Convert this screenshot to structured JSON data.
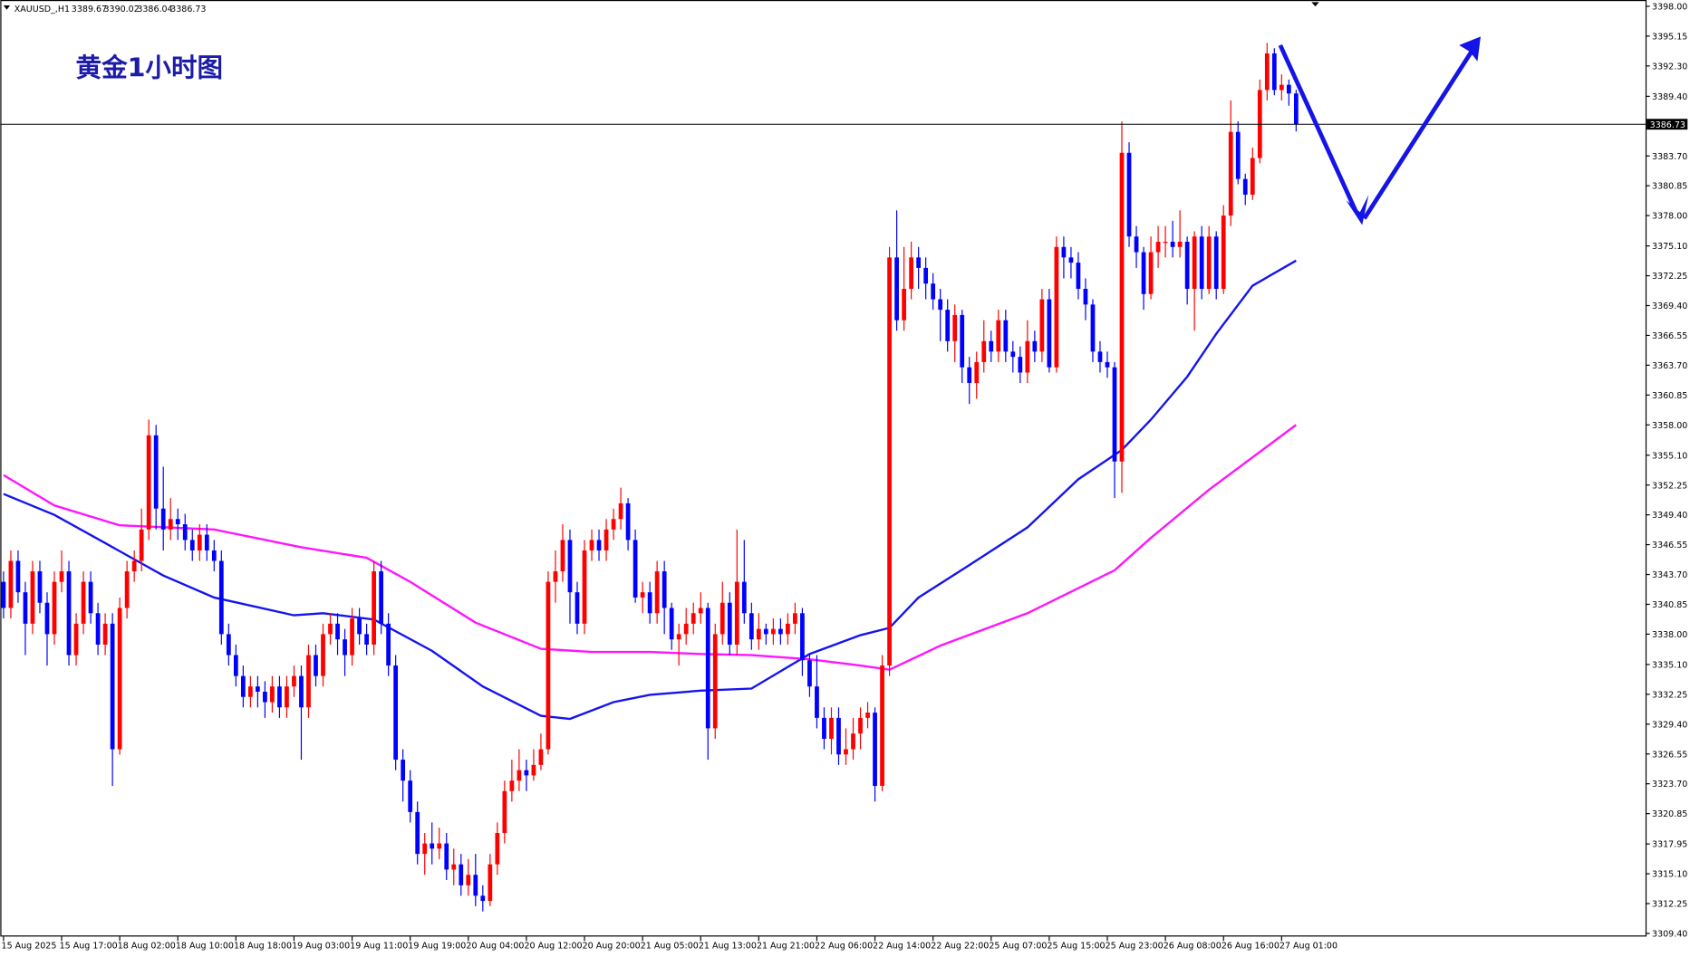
{
  "chart_data": {
    "type": "candlestick",
    "title": "黄金1小时图",
    "symbol": "XAUUSD_,H1",
    "up_color": "#ff0000",
    "down_color": "#0000ff",
    "grid": false,
    "ylim": [
      3309.1,
      3398.5
    ],
    "yticks": [
      {
        "value": 3398,
        "label": "3398.00"
      },
      3395.15,
      {
        "value": 3392.3,
        "label": "3392.30"
      },
      {
        "value": 3389.4,
        "label": "3389.40"
      },
      {
        "value": 3383.7,
        "label": "3383.70"
      },
      3380.85,
      {
        "value": 3378,
        "label": "3378.00"
      },
      {
        "value": 3375.1,
        "label": "3375.10"
      },
      3372.25,
      {
        "value": 3369.4,
        "label": "3369.40"
      },
      3366.55,
      {
        "value": 3363.7,
        "label": "3363.70"
      },
      3360.85,
      {
        "value": 3358,
        "label": "3358.00"
      },
      {
        "value": 3355.1,
        "label": "3355.10"
      },
      3352.25,
      {
        "value": 3349.4,
        "label": "3349.40"
      },
      3346.55,
      {
        "value": 3343.7,
        "label": "3343.70"
      },
      3340.85,
      {
        "value": 3338,
        "label": "3338.00"
      },
      {
        "value": 3335.1,
        "label": "3335.10"
      },
      3332.25,
      {
        "value": 3329.4,
        "label": "3329.40"
      },
      3326.55,
      {
        "value": 3323.7,
        "label": "3323.70"
      },
      3320.85,
      3317.95,
      {
        "value": 3315.1,
        "label": "3315.10"
      },
      3312.25,
      {
        "value": 3309.4,
        "label": "3309.40"
      }
    ],
    "categories": [
      "15 Aug 2025",
      null,
      null,
      null,
      null,
      null,
      null,
      null,
      "15 Aug 17:00",
      null,
      null,
      null,
      null,
      null,
      null,
      null,
      "18 Aug 02:00",
      null,
      null,
      null,
      null,
      null,
      null,
      null,
      "18 Aug 10:00",
      null,
      null,
      null,
      null,
      null,
      null,
      null,
      "18 Aug 18:00",
      null,
      null,
      null,
      null,
      null,
      null,
      null,
      "19 Aug 03:00",
      null,
      null,
      null,
      null,
      null,
      null,
      null,
      "19 Aug 11:00",
      null,
      null,
      null,
      null,
      null,
      null,
      null,
      "19 Aug 19:00",
      null,
      null,
      null,
      null,
      null,
      null,
      null,
      "20 Aug 04:00",
      null,
      null,
      null,
      null,
      null,
      null,
      null,
      "20 Aug 12:00",
      null,
      null,
      null,
      null,
      null,
      null,
      null,
      "20 Aug 20:00",
      null,
      null,
      null,
      null,
      null,
      null,
      null,
      "21 Aug 05:00",
      null,
      null,
      null,
      null,
      null,
      null,
      null,
      "21 Aug 13:00",
      null,
      null,
      null,
      null,
      null,
      null,
      null,
      "21 Aug 21:00",
      null,
      null,
      null,
      null,
      null,
      null,
      null,
      "22 Aug 06:00",
      null,
      null,
      null,
      null,
      null,
      null,
      null,
      "22 Aug 14:00",
      null,
      null,
      null,
      null,
      null,
      null,
      null,
      "22 Aug 22:00",
      null,
      null,
      null,
      null,
      null,
      null,
      null,
      "25 Aug 07:00",
      null,
      null,
      null,
      null,
      null,
      null,
      null,
      "25 Aug 15:00",
      null,
      null,
      null,
      null,
      null,
      null,
      null,
      "25 Aug 23:00",
      null,
      null,
      null,
      null,
      null,
      null,
      null,
      "26 Aug 08:00",
      null,
      null,
      null,
      null,
      null,
      null,
      null,
      "26 Aug 16:00",
      null,
      null,
      null,
      null,
      null,
      null,
      null,
      "27 Aug 01:00",
      null,
      null
    ],
    "open": [
      3343,
      3340.5,
      3345,
      3342,
      3339,
      3344,
      3341,
      3338,
      3343,
      3344,
      3336,
      3339,
      3343,
      3340,
      3337,
      3339,
      3327,
      3340.5,
      3344,
      3345,
      3348,
      3357,
      3350,
      3348,
      3349,
      3348.5,
      3347,
      3346,
      3347.5,
      3346,
      3345,
      3338,
      3336,
      3334,
      3332,
      3333,
      3332.5,
      3331.5,
      3333,
      3331,
      3333,
      3334,
      3331,
      3336,
      3334,
      3338,
      3339,
      3337.5,
      3336,
      3339.5,
      3338,
      3337,
      3344,
      3339,
      3335,
      3326,
      3324,
      3321,
      3317,
      3318,
      3317.5,
      3318,
      3315.5,
      3316,
      3314,
      3315,
      3313,
      3312.5,
      3316,
      3319,
      3323,
      3324,
      3325,
      3324.5,
      3325.5,
      3327,
      3343,
      3344,
      3347,
      3342,
      3339,
      3346,
      3347,
      3346,
      3348,
      3349,
      3350.5,
      3347,
      3341.5,
      3342,
      3340,
      3344,
      3340.5,
      3337.5,
      3338,
      3339,
      3340,
      3340.5,
      3329,
      3338,
      3341,
      3337,
      3343,
      3340,
      3337.5,
      3338.5,
      3338,
      3338.5,
      3338,
      3339,
      3340,
      3335.5,
      3333,
      3330,
      3328,
      3330,
      3326.5,
      3327,
      3328.5,
      3330,
      3330.5,
      3323.5,
      3335,
      3374,
      3368,
      3371,
      3374,
      3373,
      3371.5,
      3370,
      3369,
      3366,
      3368.5,
      3363.5,
      3362,
      3364,
      3366,
      3365,
      3368,
      3365,
      3364.5,
      3363,
      3366,
      3365,
      3370,
      3363.5,
      3375,
      3374,
      3373.5,
      3371,
      3369.5,
      3365,
      3364,
      3363.5,
      3354.5,
      3384,
      3376,
      3374.5,
      3370.5,
      3374.5,
      3375.5,
      3375.5,
      3375,
      3375.5,
      3371,
      3376,
      3371,
      3376,
      3371,
      3378,
      3386,
      3381.5,
      3380,
      3383.5,
      3390,
      3393.5,
      3390,
      3390.5,
      3389.67
    ],
    "high": [
      3344,
      3346,
      3346,
      3343,
      3345,
      3345,
      3342,
      3344,
      3346,
      3345,
      3340,
      3344,
      3344,
      3341,
      3340,
      3340,
      3341.5,
      3345,
      3346,
      3350,
      3358.5,
      3358,
      3354,
      3351,
      3350,
      3349.5,
      3348,
      3348.5,
      3348.5,
      3347,
      3346,
      3339,
      3337,
      3335,
      3334,
      3334,
      3333.5,
      3334,
      3334,
      3334,
      3335,
      3335,
      3337,
      3337,
      3339,
      3340,
      3340,
      3338.5,
      3340.5,
      3340.5,
      3339,
      3345,
      3345,
      3340,
      3336,
      3327,
      3325,
      3322,
      3319,
      3320,
      3319.5,
      3319,
      3317.5,
      3317,
      3316.5,
      3317,
      3314,
      3317,
      3320,
      3324,
      3326,
      3327,
      3326,
      3327,
      3328.5,
      3344,
      3346,
      3348.5,
      3348,
      3343,
      3347,
      3348,
      3348,
      3349,
      3350,
      3352,
      3351,
      3348,
      3343,
      3343,
      3345,
      3345,
      3341,
      3339,
      3340.5,
      3341,
      3342,
      3341,
      3339,
      3343,
      3342,
      3348,
      3347,
      3341,
      3340,
      3339,
      3339.5,
      3339.5,
      3340,
      3341,
      3340.5,
      3336,
      3336,
      3331,
      3331,
      3331,
      3329,
      3330,
      3331,
      3331.5,
      3331,
      3336,
      3375,
      3378.5,
      3375,
      3375.5,
      3375,
      3374,
      3372.5,
      3371,
      3370,
      3369.5,
      3369,
      3364.5,
      3365,
      3368,
      3367,
      3369,
      3369,
      3366,
      3365.5,
      3368,
      3367,
      3371,
      3371,
      3376,
      3376,
      3375,
      3374.5,
      3372,
      3370,
      3366,
      3365,
      3364,
      3387,
      3385,
      3377,
      3375,
      3376,
      3377,
      3377,
      3377.5,
      3378.5,
      3376,
      3376.5,
      3377,
      3377,
      3376.5,
      3379,
      3389,
      3387,
      3382,
      3384.5,
      3391,
      3394.5,
      3394,
      3391.5,
      3391,
      3390.02
    ],
    "low": [
      3339.5,
      3339.5,
      3341,
      3336,
      3338,
      3340,
      3335,
      3337,
      3342,
      3335,
      3335,
      3338,
      3339,
      3336,
      3336,
      3323.5,
      3326.5,
      3339.5,
      3343,
      3344,
      3347,
      3348,
      3346,
      3347,
      3347,
      3346,
      3345,
      3345,
      3345,
      3344,
      3337,
      3335,
      3333,
      3331,
      3331,
      3331,
      3330,
      3330.5,
      3330,
      3330,
      3332,
      3326,
      3330,
      3333,
      3333,
      3337,
      3336,
      3334,
      3335,
      3337,
      3336,
      3336,
      3338,
      3334,
      3325,
      3322,
      3320,
      3316,
      3315,
      3316,
      3316.5,
      3314.5,
      3314,
      3313,
      3313,
      3312,
      3311.5,
      3312,
      3315,
      3318,
      3322,
      3323,
      3323,
      3324,
      3325,
      3326.5,
      3341,
      3343,
      3339,
      3338,
      3338,
      3345,
      3345,
      3345,
      3347,
      3348,
      3346,
      3341,
      3340,
      3339,
      3339,
      3338,
      3336.5,
      3335,
      3337,
      3338,
      3339,
      3326,
      3328,
      3337,
      3336,
      3336,
      3339,
      3336.5,
      3336.5,
      3337,
      3337,
      3337,
      3337,
      3338,
      3334,
      3332,
      3329,
      3327,
      3326.5,
      3325.5,
      3325.5,
      3326,
      3327,
      3329,
      3322,
      3323,
      3334,
      3367,
      3367,
      3370,
      3371,
      3370,
      3369,
      3366,
      3365,
      3364,
      3362,
      3360,
      3360.5,
      3363,
      3364,
      3364,
      3364,
      3363,
      3362,
      3362,
      3364,
      3364,
      3363,
      3363,
      3372,
      3372,
      3370,
      3368,
      3364,
      3363,
      3362.5,
      3351,
      3351.5,
      3375,
      3373,
      3369,
      3370,
      3373,
      3374,
      3374,
      3374,
      3369.5,
      3367,
      3370,
      3370.5,
      3370,
      3370.5,
      3377,
      3381,
      3379,
      3379.5,
      3383,
      3389,
      3389.5,
      3389,
      3388.5,
      3386.04
    ],
    "close": [
      3340.5,
      3345,
      3342,
      3339,
      3344,
      3341,
      3338,
      3343,
      3344,
      3336,
      3339,
      3343,
      3340,
      3337,
      3339,
      3327,
      3340.5,
      3344,
      3345,
      3348,
      3357,
      3350,
      3348,
      3349,
      3348.5,
      3347,
      3346,
      3347.5,
      3346,
      3345,
      3338,
      3336,
      3334,
      3332,
      3333,
      3332.5,
      3331.5,
      3333,
      3331,
      3333,
      3334,
      3331,
      3336,
      3334,
      3338,
      3339,
      3337.5,
      3336,
      3339.5,
      3338,
      3337,
      3344,
      3339,
      3335,
      3326,
      3324,
      3321,
      3317,
      3318,
      3317.5,
      3318,
      3315.5,
      3316,
      3314,
      3315,
      3313,
      3312.5,
      3316,
      3319,
      3323,
      3324,
      3325,
      3324.5,
      3325.5,
      3327,
      3343,
      3344,
      3347,
      3342,
      3339,
      3346,
      3347,
      3346,
      3348,
      3349,
      3350.5,
      3347,
      3341.5,
      3342,
      3340,
      3344,
      3340.5,
      3337.5,
      3338,
      3339,
      3340,
      3340.5,
      3329,
      3338,
      3341,
      3337,
      3343,
      3340,
      3337.5,
      3338.5,
      3338,
      3338.5,
      3338,
      3339,
      3340,
      3335.5,
      3333,
      3330,
      3328,
      3330,
      3326.5,
      3327,
      3328.5,
      3330,
      3330.5,
      3323.5,
      3335,
      3374,
      3368,
      3371,
      3374,
      3373,
      3371.5,
      3370,
      3369,
      3366,
      3368.5,
      3363.5,
      3362,
      3364,
      3366,
      3365,
      3368,
      3365,
      3364.5,
      3363,
      3366,
      3365,
      3370,
      3363.5,
      3375,
      3374,
      3373.5,
      3371,
      3369.5,
      3365,
      3364,
      3363.5,
      3354.5,
      3384,
      3376,
      3374.5,
      3370.5,
      3374.5,
      3375.5,
      3375.5,
      3375,
      3375.5,
      3371,
      3376,
      3371,
      3376,
      3371,
      3378,
      3386,
      3381.5,
      3380,
      3383.5,
      3390,
      3393.5,
      3390,
      3390.5,
      3389.67,
      3386.73
    ],
    "moving_averages": [
      {
        "color": "#1414f0",
        "x": [
          0,
          7,
          14,
          22,
          29,
          40,
          44,
          51,
          59,
          66,
          74,
          78,
          84,
          89,
          96,
          103,
          111,
          118,
          122,
          126,
          133,
          141,
          148,
          154,
          158,
          163,
          167,
          172,
          178
        ],
        "values": [
          3351.4,
          3349.4,
          3346.7,
          3343.6,
          3341.5,
          3339.8,
          3340,
          3339.4,
          3336.4,
          3333,
          3330.2,
          3329.9,
          3331.5,
          3332.2,
          3332.6,
          3332.8,
          3336.1,
          3337.9,
          3338.6,
          3341.5,
          3344.6,
          3348.2,
          3352.8,
          3355.6,
          3358.5,
          3362.6,
          3366.7,
          3371.3,
          3373.7
        ]
      },
      {
        "color": "#ff14ff",
        "x": [
          0,
          7,
          16,
          29,
          41,
          50,
          56,
          65,
          74,
          81,
          89,
          96,
          103,
          111,
          118,
          122,
          129,
          141,
          153,
          158,
          166,
          172,
          178
        ],
        "values": [
          3353.2,
          3350.3,
          3348.4,
          3348,
          3346.3,
          3345.3,
          3343,
          3339.1,
          3336.6,
          3336.3,
          3336.3,
          3336.1,
          3336,
          3335.6,
          3335,
          3334.6,
          3336.9,
          3340,
          3344.1,
          3347.2,
          3351.8,
          3354.9,
          3358
        ]
      }
    ]
  }
}
